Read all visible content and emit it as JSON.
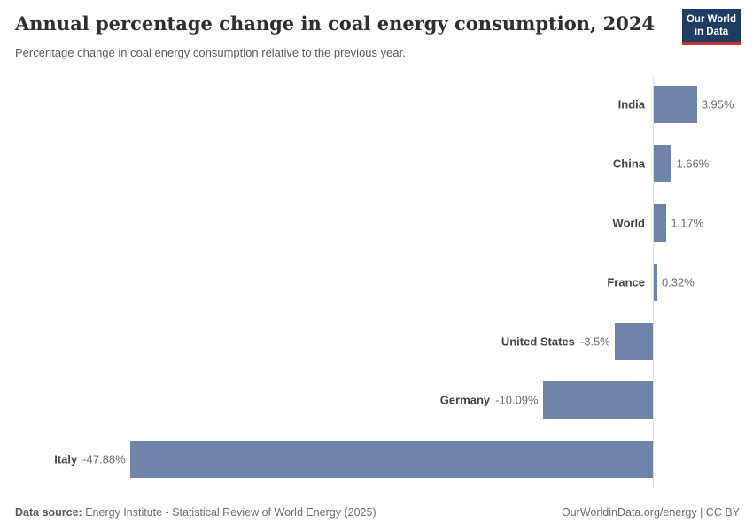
{
  "header": {
    "title": "Annual percentage change in coal energy consumption, 2024",
    "subtitle": "Percentage change in coal energy consumption relative to the previous year.",
    "logo": {
      "line1": "Our World",
      "line2": "in Data"
    }
  },
  "chart_data": {
    "type": "bar",
    "orientation": "horizontal",
    "title": "Annual percentage change in coal energy consumption, 2024",
    "categories": [
      "India",
      "China",
      "World",
      "France",
      "United States",
      "Germany",
      "Italy"
    ],
    "values": [
      3.95,
      1.66,
      1.17,
      0.32,
      -3.5,
      -10.09,
      -47.88
    ],
    "labels": [
      "3.95%",
      "1.66%",
      "1.17%",
      "0.32%",
      "-3.5%",
      "-10.09%",
      "-47.88%"
    ],
    "xlabel": "",
    "ylabel": "",
    "xlim": [
      -47.88,
      3.95
    ],
    "grid": false,
    "bar_color": "#6e84aa",
    "zero_line_color": "#dedede"
  },
  "footer": {
    "source_label": "Data source:",
    "source_text": "Energy Institute - Statistical Review of World Energy (2025)",
    "rights": "OurWorldinData.org/energy | CC BY"
  }
}
